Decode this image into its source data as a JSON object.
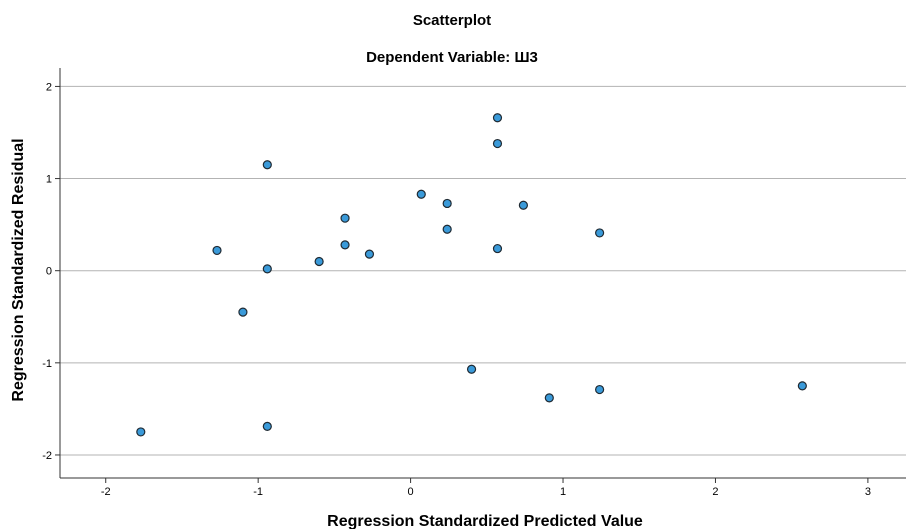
{
  "chart_data": {
    "type": "scatter",
    "title": "Scatterplot",
    "subtitle": "Dependent Variable: Ш3",
    "xlabel": "Regression Standardized Predicted Value",
    "ylabel": "Regression Standardized Residual",
    "xlim": [
      -2.3,
      3.25
    ],
    "ylim": [
      -2.25,
      2.2
    ],
    "xticks": [
      "-2",
      "-1",
      "0",
      "1",
      "2",
      "3"
    ],
    "yticks": [
      "2",
      "1",
      "0",
      "-1",
      "-2"
    ],
    "grid": "horizontal",
    "colors": {
      "point_fill": "#3a9ad9",
      "point_stroke": "#1f2a33",
      "grid": "#b3b3b3",
      "axis": "#333333"
    },
    "points": [
      {
        "x": 0.57,
        "y": 1.66
      },
      {
        "x": 0.57,
        "y": 1.38
      },
      {
        "x": -0.94,
        "y": 1.15
      },
      {
        "x": 0.07,
        "y": 0.83
      },
      {
        "x": 0.24,
        "y": 0.73
      },
      {
        "x": 0.74,
        "y": 0.71
      },
      {
        "x": -0.43,
        "y": 0.57
      },
      {
        "x": 0.24,
        "y": 0.45
      },
      {
        "x": 1.24,
        "y": 0.41
      },
      {
        "x": -0.43,
        "y": 0.28
      },
      {
        "x": 0.57,
        "y": 0.24
      },
      {
        "x": -1.27,
        "y": 0.22
      },
      {
        "x": -0.27,
        "y": 0.18
      },
      {
        "x": -0.6,
        "y": 0.1
      },
      {
        "x": -0.94,
        "y": 0.02
      },
      {
        "x": -1.1,
        "y": -0.45
      },
      {
        "x": 0.4,
        "y": -1.07
      },
      {
        "x": 2.57,
        "y": -1.25
      },
      {
        "x": 1.24,
        "y": -1.29
      },
      {
        "x": 0.91,
        "y": -1.38
      },
      {
        "x": -0.94,
        "y": -1.69
      },
      {
        "x": -1.77,
        "y": -1.75
      }
    ]
  }
}
